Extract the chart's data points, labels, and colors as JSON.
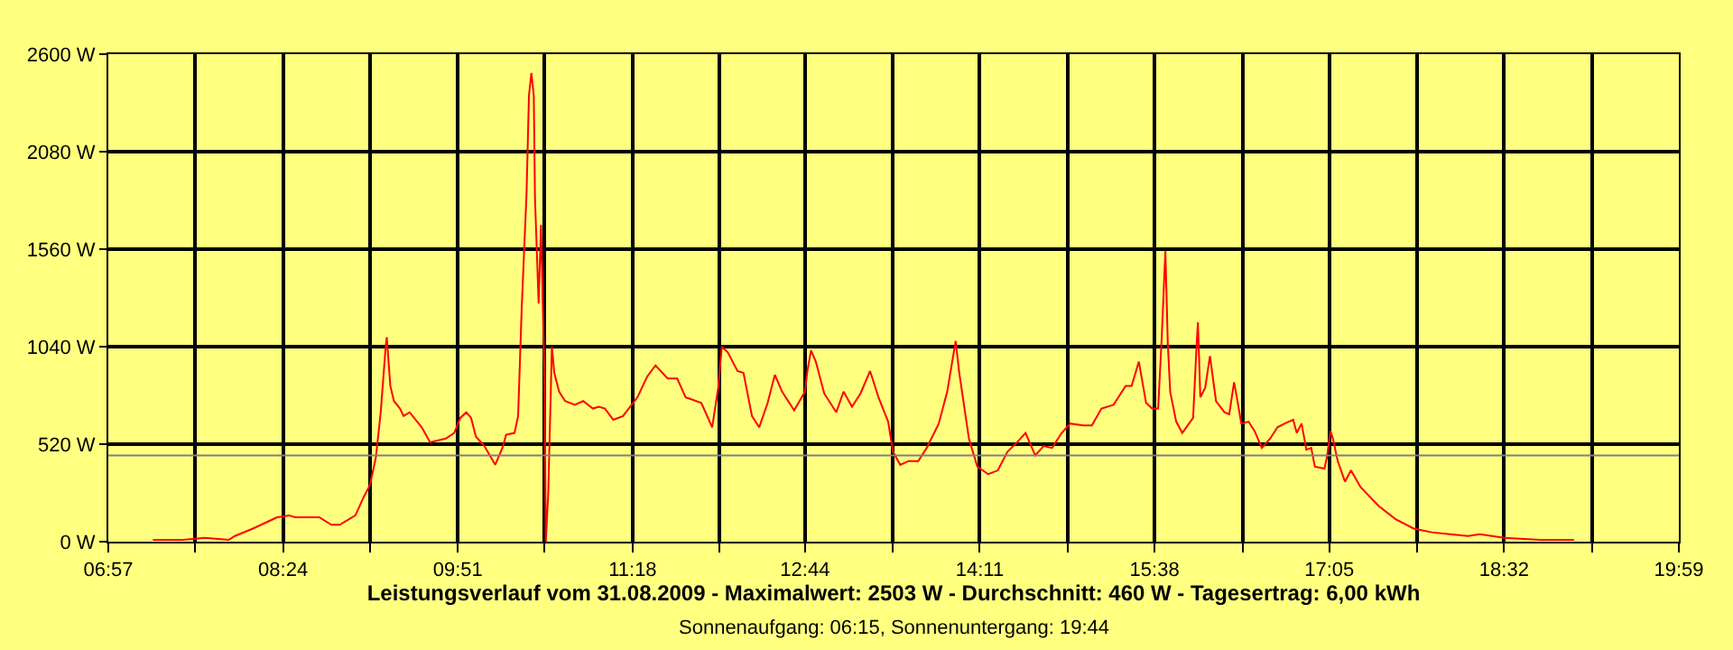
{
  "chart_data": {
    "type": "line",
    "title": "Leistungsverlauf vom 31.08.2009 - Maximalwert: 2503 W - Durchschnitt: 460 W - Tagesertrag: 6,00 kWh",
    "subtitle": "Sonnenaufgang: 06:15, Sonnenuntergang: 19:44",
    "x": [
      7.32,
      7.57,
      7.75,
      7.95,
      8.0,
      8.15,
      8.25,
      8.35,
      8.45,
      8.5,
      8.7,
      8.8,
      8.87,
      9.0,
      9.07,
      9.12,
      9.17,
      9.21,
      9.25,
      9.26,
      9.29,
      9.32,
      9.37,
      9.4,
      9.45,
      9.55,
      9.62,
      9.75,
      9.82,
      9.87,
      9.92,
      9.96,
      10.0,
      10.07,
      10.16,
      10.22,
      10.25,
      10.32,
      10.35,
      10.38,
      10.42,
      10.44,
      10.46,
      10.48,
      10.49,
      10.51,
      10.52,
      10.54,
      10.55,
      10.57,
      10.58,
      10.6,
      10.62,
      10.63,
      10.65,
      10.69,
      10.74,
      10.82,
      10.89,
      10.97,
      11.02,
      11.07,
      11.14,
      11.22,
      11.34,
      11.42,
      11.49,
      11.59,
      11.67,
      11.74,
      11.87,
      11.96,
      12.01,
      12.04,
      12.09,
      12.17,
      12.22,
      12.29,
      12.35,
      12.42,
      12.48,
      12.54,
      12.64,
      12.73,
      12.75,
      12.78,
      12.82,
      12.89,
      12.99,
      13.05,
      13.12,
      13.19,
      13.27,
      13.34,
      13.42,
      13.46,
      13.52,
      13.59,
      13.67,
      13.74,
      13.84,
      13.91,
      13.98,
      14.01,
      14.09,
      14.16,
      14.25,
      14.33,
      14.41,
      14.49,
      14.56,
      14.64,
      14.71,
      14.78,
      14.86,
      14.93,
      15.04,
      15.11,
      15.19,
      15.29,
      15.34,
      15.39,
      15.44,
      15.5,
      15.56,
      15.61,
      15.66,
      15.69,
      15.71,
      15.72,
      15.74,
      15.76,
      15.81,
      15.86,
      15.95,
      15.98,
      15.99,
      16.01,
      16.05,
      16.09,
      16.14,
      16.21,
      16.25,
      16.29,
      16.31,
      16.35,
      16.41,
      16.46,
      16.52,
      16.59,
      16.65,
      16.71,
      16.78,
      16.81,
      16.85,
      16.89,
      16.93,
      16.96,
      17.04,
      17.06,
      17.09,
      17.11,
      17.15,
      17.21,
      17.26,
      17.34,
      17.49,
      17.63,
      17.78,
      17.93,
      18.08,
      18.23,
      18.33,
      18.53,
      18.83,
      19.11
    ],
    "values": [
      10,
      10,
      20,
      10,
      30,
      70,
      100,
      130,
      140,
      130,
      130,
      90,
      90,
      140,
      240,
      300,
      450,
      690,
      1030,
      1090,
      830,
      750,
      710,
      670,
      690,
      610,
      530,
      550,
      580,
      660,
      690,
      660,
      560,
      510,
      410,
      500,
      570,
      580,
      670,
      1250,
      1860,
      2380,
      2500,
      2380,
      1830,
      1460,
      1270,
      1690,
      1400,
      830,
      0,
      260,
      770,
      1040,
      900,
      800,
      750,
      730,
      750,
      710,
      720,
      710,
      650,
      670,
      770,
      880,
      940,
      870,
      870,
      770,
      740,
      610,
      820,
      1040,
      1010,
      910,
      900,
      670,
      610,
      740,
      890,
      800,
      700,
      800,
      910,
      1020,
      960,
      790,
      690,
      800,
      720,
      790,
      910,
      770,
      640,
      480,
      410,
      430,
      430,
      500,
      630,
      800,
      1070,
      900,
      550,
      400,
      360,
      380,
      480,
      530,
      580,
      460,
      510,
      500,
      580,
      630,
      620,
      620,
      710,
      730,
      780,
      830,
      830,
      960,
      740,
      710,
      710,
      1090,
      1400,
      1550,
      1060,
      800,
      640,
      580,
      660,
      1060,
      1170,
      770,
      820,
      990,
      750,
      690,
      680,
      850,
      780,
      630,
      640,
      590,
      500,
      550,
      610,
      630,
      650,
      580,
      630,
      490,
      500,
      400,
      390,
      450,
      590,
      550,
      430,
      320,
      380,
      290,
      190,
      120,
      70,
      50,
      40,
      30,
      40,
      20,
      10,
      10
    ],
    "color": "#ff0000",
    "xlim": [
      6.95,
      19.98
    ],
    "xticks": [
      {
        "value": 6.95,
        "label": "06:57"
      },
      {
        "value": 7.67,
        "label": null
      },
      {
        "value": 8.4,
        "label": "08:24"
      },
      {
        "value": 9.12,
        "label": null
      },
      {
        "value": 9.85,
        "label": "09:51"
      },
      {
        "value": 10.57,
        "label": null
      },
      {
        "value": 11.3,
        "label": "11:18"
      },
      {
        "value": 12.02,
        "label": null
      },
      {
        "value": 12.73,
        "label": "12:44"
      },
      {
        "value": 13.46,
        "label": null
      },
      {
        "value": 14.18,
        "label": "14:11"
      },
      {
        "value": 14.91,
        "label": null
      },
      {
        "value": 15.63,
        "label": "15:38"
      },
      {
        "value": 16.36,
        "label": null
      },
      {
        "value": 17.08,
        "label": "17:05"
      },
      {
        "value": 17.81,
        "label": null
      },
      {
        "value": 18.53,
        "label": "18:32"
      },
      {
        "value": 19.26,
        "label": null
      },
      {
        "value": 19.98,
        "label": "19:59"
      }
    ],
    "ylim": [
      0,
      2600
    ],
    "yticks": [
      {
        "value": 0,
        "label": "0 W"
      },
      {
        "value": 520,
        "label": "520 W"
      },
      {
        "value": 1040,
        "label": "1040 W"
      },
      {
        "value": 1560,
        "label": "1560 W"
      },
      {
        "value": 2080,
        "label": "2080 W"
      },
      {
        "value": 2600,
        "label": "2600 W"
      }
    ],
    "ref_lines": [
      {
        "axis": "y",
        "value": 460,
        "label": null,
        "color": "#808080"
      }
    ],
    "grid": true,
    "legend": false,
    "marker": "none",
    "line_style": "solid"
  }
}
